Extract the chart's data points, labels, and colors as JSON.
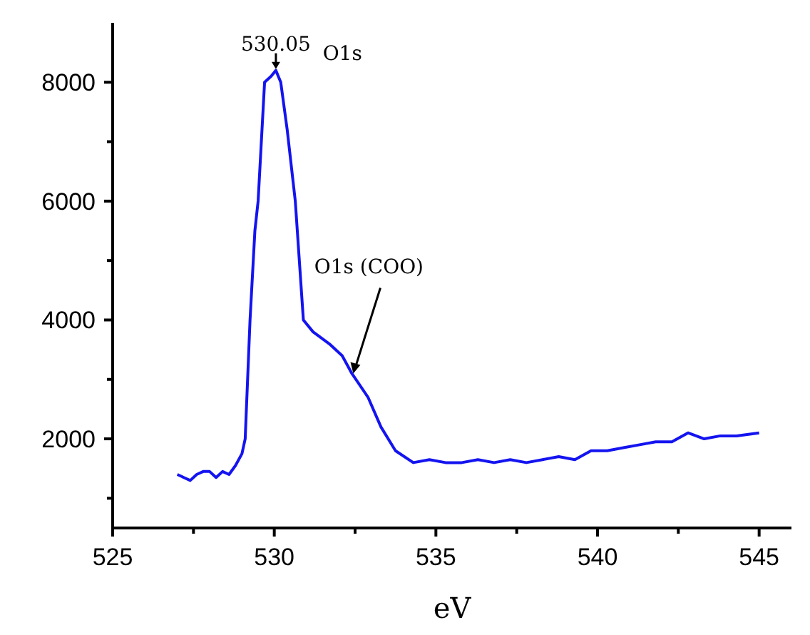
{
  "chart_data": {
    "type": "line",
    "xlabel": "eV",
    "xlim": [
      525,
      546
    ],
    "xticks": [
      525,
      {
        "value": 527.5,
        "label": null
      },
      530,
      {
        "value": 532.5,
        "label": null
      },
      535,
      {
        "value": 537.5,
        "label": null
      },
      540,
      {
        "value": 542.5,
        "label": null
      },
      545
    ],
    "ylim": [
      500,
      9000
    ],
    "yticks": [
      {
        "value": 1000,
        "label": null
      },
      2000,
      {
        "value": 3000,
        "label": null
      },
      4000,
      {
        "value": 5000,
        "label": null
      },
      6000,
      {
        "value": 7000,
        "label": null
      },
      8000
    ],
    "grid": false,
    "marker": "none",
    "line_style": "solid",
    "annotations": [
      {
        "text": "530.05",
        "x": 530.05,
        "y": 8200
      },
      {
        "text": "O1s (COO)",
        "x": 532.4,
        "y": 3100
      },
      "O1s"
    ],
    "series": [
      {
        "color": "#1414f0",
        "x": [
          527.0,
          527.2,
          527.4,
          527.6,
          527.8,
          528.0,
          528.2,
          528.4,
          528.6,
          528.8,
          529.0,
          529.1,
          529.25,
          529.4,
          529.5,
          529.7,
          529.9,
          530.05,
          530.2,
          530.4,
          530.65,
          530.9,
          531.2,
          531.7,
          532.1,
          532.4,
          532.9,
          533.3,
          533.75,
          534.3,
          534.8,
          535.3,
          535.8,
          536.3,
          536.8,
          537.3,
          537.8,
          538.3,
          538.8,
          539.3,
          539.8,
          540.3,
          540.8,
          541.3,
          541.8,
          542.3,
          542.8,
          543.3,
          543.8,
          544.3,
          545.0
        ],
        "values": [
          1400,
          1350,
          1300,
          1400,
          1450,
          1450,
          1350,
          1450,
          1400,
          1550,
          1750,
          2000,
          4000,
          5500,
          6000,
          8000,
          8100,
          8200,
          8000,
          7200,
          6000,
          4000,
          3800,
          3600,
          3400,
          3100,
          2700,
          2200,
          1800,
          1600,
          1650,
          1600,
          1600,
          1650,
          1600,
          1650,
          1600,
          1650,
          1700,
          1650,
          1800,
          1800,
          1850,
          1900,
          1950,
          1950,
          2100,
          2000,
          2050,
          2050,
          2100
        ]
      }
    ]
  }
}
